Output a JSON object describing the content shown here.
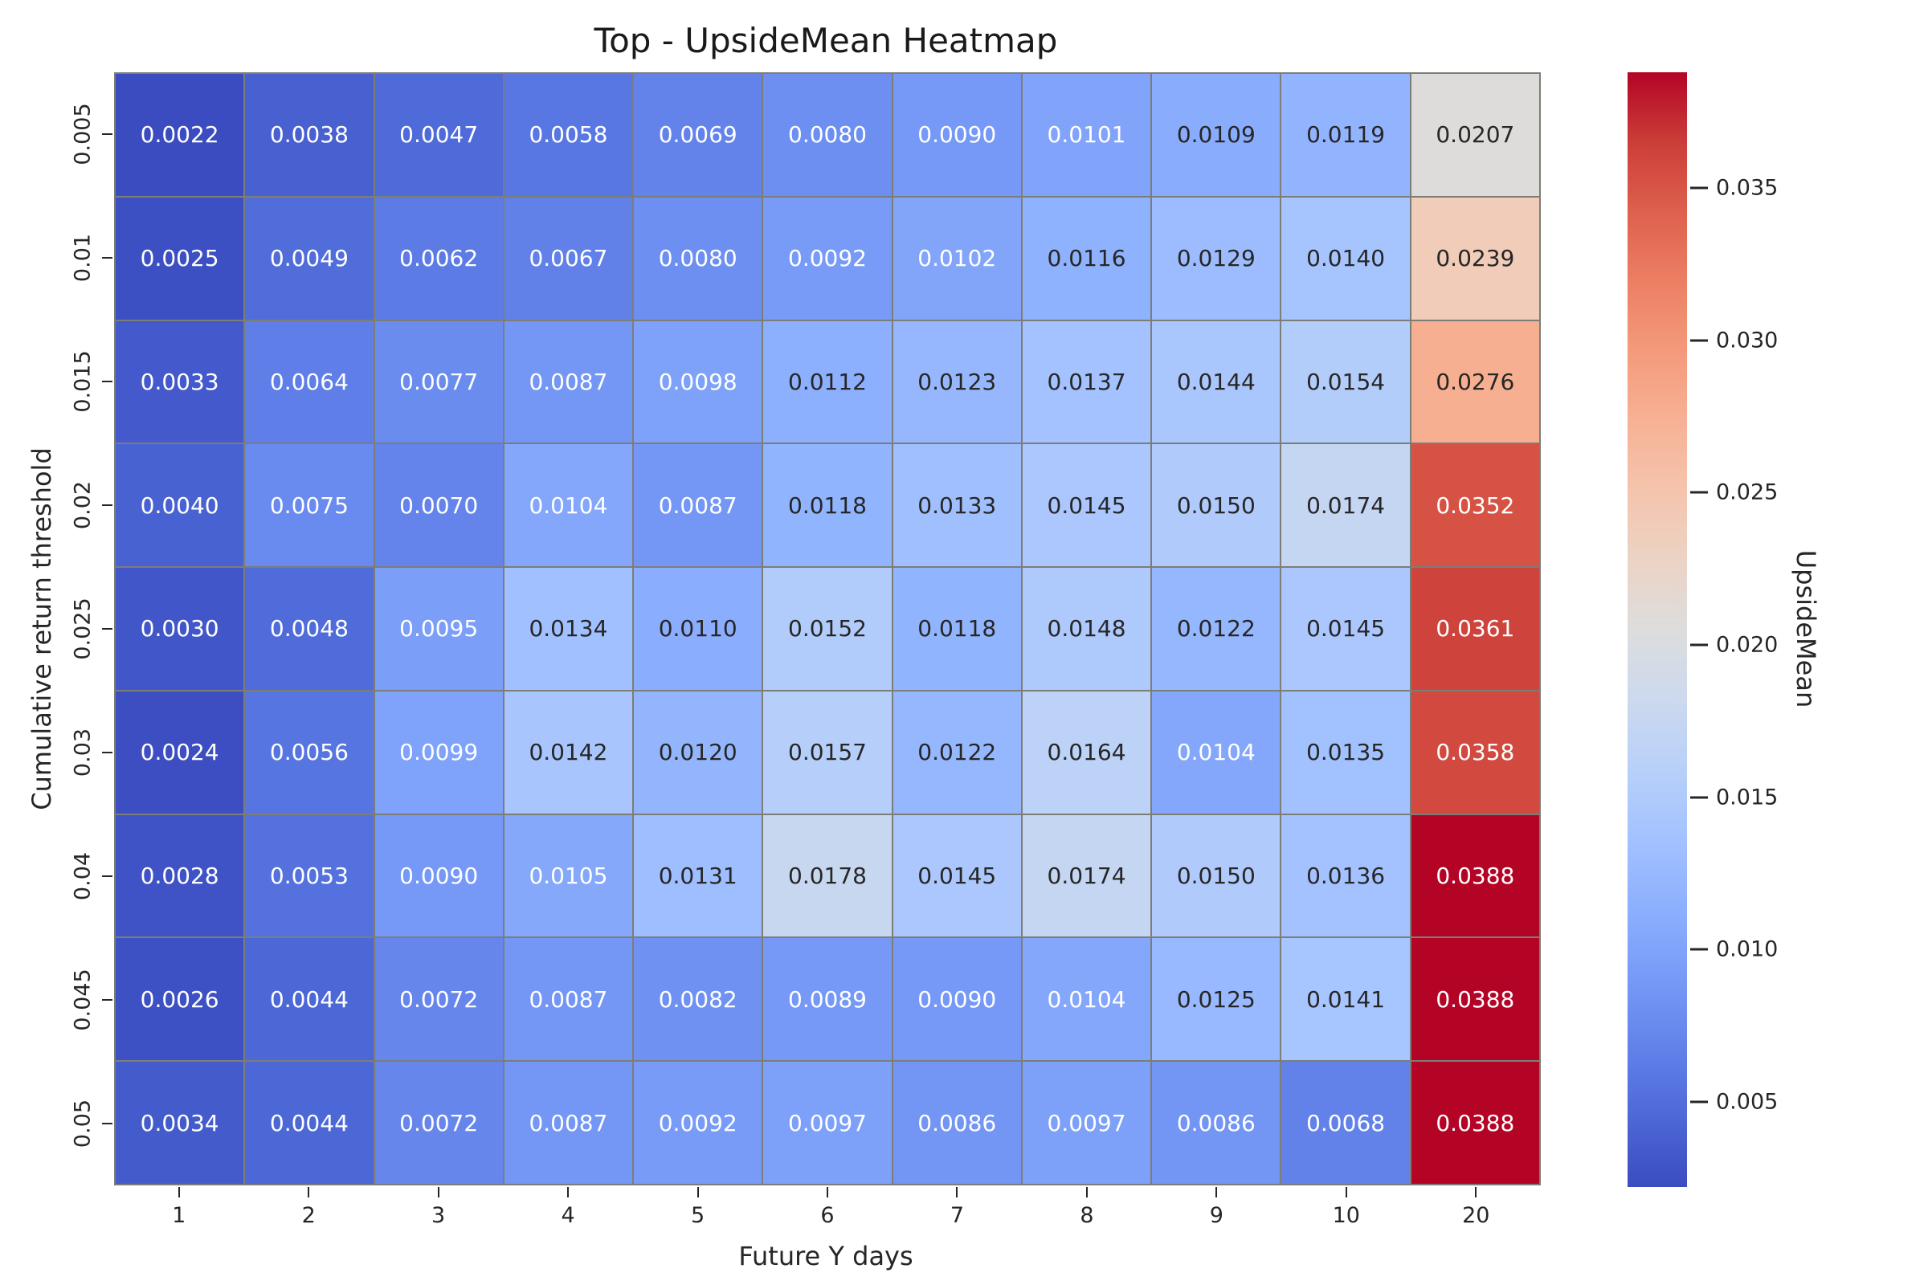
{
  "chart_data": {
    "type": "heatmap",
    "title": "Top - UpsideMean Heatmap",
    "xlabel": "Future Y days",
    "ylabel": "Cumulative return threshold",
    "x_ticklabels": [
      "1",
      "2",
      "3",
      "4",
      "5",
      "6",
      "7",
      "8",
      "9",
      "10",
      "20"
    ],
    "y_ticklabels": [
      "0.005",
      "0.01",
      "0.015",
      "0.02",
      "0.025",
      "0.03",
      "0.04",
      "0.045",
      "0.05"
    ],
    "values": [
      [
        0.0022,
        0.0038,
        0.0047,
        0.0058,
        0.0069,
        0.008,
        0.009,
        0.0101,
        0.0109,
        0.0119,
        0.0207
      ],
      [
        0.0025,
        0.0049,
        0.0062,
        0.0067,
        0.008,
        0.0092,
        0.0102,
        0.0116,
        0.0129,
        0.014,
        0.0239
      ],
      [
        0.0033,
        0.0064,
        0.0077,
        0.0087,
        0.0098,
        0.0112,
        0.0123,
        0.0137,
        0.0144,
        0.0154,
        0.0276
      ],
      [
        0.004,
        0.0075,
        0.007,
        0.0104,
        0.0087,
        0.0118,
        0.0133,
        0.0145,
        0.015,
        0.0174,
        0.0352
      ],
      [
        0.003,
        0.0048,
        0.0095,
        0.0134,
        0.011,
        0.0152,
        0.0118,
        0.0148,
        0.0122,
        0.0145,
        0.0361
      ],
      [
        0.0024,
        0.0056,
        0.0099,
        0.0142,
        0.012,
        0.0157,
        0.0122,
        0.0164,
        0.0104,
        0.0135,
        0.0358
      ],
      [
        0.0028,
        0.0053,
        0.009,
        0.0105,
        0.0131,
        0.0178,
        0.0145,
        0.0174,
        0.015,
        0.0136,
        0.0388
      ],
      [
        0.0026,
        0.0044,
        0.0072,
        0.0087,
        0.0082,
        0.0089,
        0.009,
        0.0104,
        0.0125,
        0.0141,
        0.0388
      ],
      [
        0.0034,
        0.0044,
        0.0072,
        0.0087,
        0.0092,
        0.0097,
        0.0086,
        0.0097,
        0.0086,
        0.0068,
        0.0388
      ]
    ],
    "value_decimals": 4,
    "vmin": 0.0022,
    "vmax": 0.0388,
    "colormap": "coolwarm",
    "annotated": true,
    "grid_on": true,
    "colorbar": {
      "label": "UpsideMean",
      "tick_values": [
        0.005,
        0.01,
        0.015,
        0.02,
        0.025,
        0.03,
        0.035
      ],
      "tick_labels": [
        "0.005",
        "0.010",
        "0.015",
        "0.020",
        "0.025",
        "0.030",
        "0.035"
      ],
      "position": "right"
    },
    "colors": {
      "grid_line": "#7d7d78",
      "annotation_dark": "#262626",
      "annotation_light": "#ffffff",
      "min_color": "#3b4cc0",
      "mid_color": "#dddddd",
      "max_color": "#b40426"
    }
  }
}
